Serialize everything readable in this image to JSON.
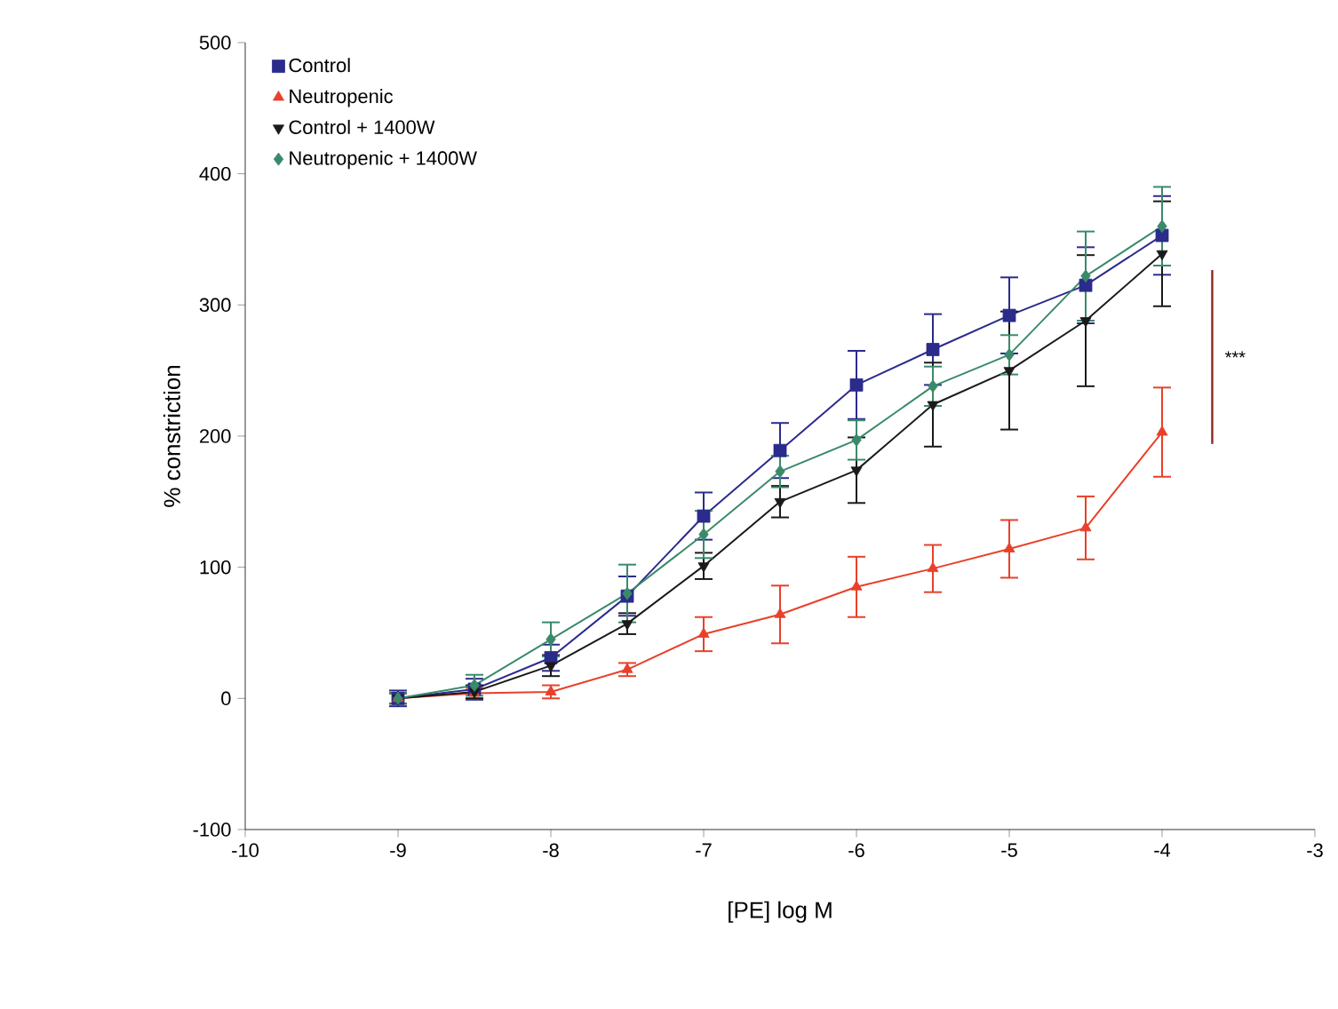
{
  "chart_data": {
    "type": "line",
    "xlabel": "[PE] log M",
    "ylabel": "% constriction",
    "x": [
      -9,
      -8.5,
      -8,
      -7.5,
      -7,
      -6.5,
      -6,
      -5.5,
      -5,
      -4.5,
      -4
    ],
    "xlim": [
      -10,
      -3
    ],
    "xticks": [
      -10,
      -9,
      -8,
      -7,
      -6,
      -5,
      -4,
      -3
    ],
    "ylim": [
      -100,
      500
    ],
    "yticks": [
      -100,
      0,
      100,
      200,
      300,
      400,
      500
    ],
    "grid": false,
    "legend": "top left",
    "line_style": "solid",
    "series": [
      {
        "name": "Control",
        "color": "#2b2b8c",
        "marker": "square",
        "values": [
          0,
          7,
          31,
          78,
          139,
          189,
          239,
          266,
          292,
          315,
          353
        ],
        "errors": [
          6,
          8,
          10,
          15,
          18,
          21,
          26,
          27,
          29,
          29,
          30
        ]
      },
      {
        "name": "Neutropenic",
        "color": "#e8402a",
        "marker": "triangle",
        "values": [
          0,
          4,
          5,
          22,
          49,
          64,
          85,
          99,
          114,
          130,
          203
        ],
        "errors": [
          4,
          4,
          5,
          5,
          13,
          22,
          23,
          18,
          22,
          24,
          34
        ]
      },
      {
        "name": "Control + 1400W",
        "color": "#1a1a1a",
        "marker": "triangle-down",
        "values": [
          0,
          5,
          25,
          57,
          101,
          150,
          174,
          224,
          250,
          288,
          339
        ],
        "errors": [
          4,
          5,
          8,
          8,
          10,
          12,
          25,
          32,
          45,
          50,
          40
        ]
      },
      {
        "name": "Neutropenic + 1400W",
        "color": "#3a8a6a",
        "marker": "diamond",
        "values": [
          0,
          10,
          45,
          80,
          125,
          173,
          197,
          238,
          262,
          322,
          360
        ],
        "errors": [
          4,
          8,
          13,
          22,
          18,
          12,
          15,
          15,
          15,
          34,
          30
        ]
      }
    ],
    "annotations": [
      "***"
    ]
  }
}
